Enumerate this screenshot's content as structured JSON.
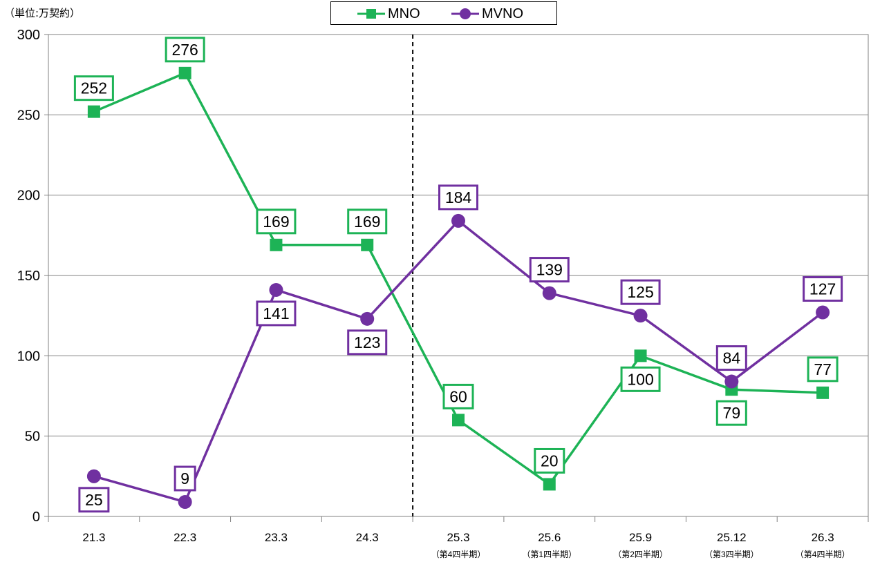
{
  "unit_label": "（単位:万契約）",
  "legend": [
    {
      "name": "MNO",
      "color": "#1db356",
      "marker": "square"
    },
    {
      "name": "MVNO",
      "color": "#7030a0",
      "marker": "circle"
    }
  ],
  "chart_data": {
    "type": "line",
    "title": "",
    "xlabel": "",
    "ylabel": "",
    "ylim": [
      0,
      300
    ],
    "yticks": [
      0,
      50,
      100,
      150,
      200,
      250,
      300
    ],
    "grid": true,
    "legend_position": "top-center",
    "categories": [
      "21.3",
      "22.3",
      "23.3",
      "24.3",
      "25.3",
      "25.6",
      "25.9",
      "25.12",
      "26.3"
    ],
    "category_sublabels": [
      "",
      "",
      "",
      "",
      "（第4四半期）",
      "（第1四半期）",
      "（第2四半期）",
      "（第3四半期）",
      "（第4四半期）"
    ],
    "divider_between": [
      "24.3",
      "25.3"
    ],
    "series": [
      {
        "name": "MNO",
        "color": "#1db356",
        "marker": "square",
        "values": [
          252,
          276,
          169,
          169,
          60,
          20,
          100,
          79,
          77
        ],
        "label_positions": [
          "above",
          "above",
          "above",
          "above",
          "above",
          "above",
          "below",
          "below",
          "above"
        ]
      },
      {
        "name": "MVNO",
        "color": "#7030a0",
        "marker": "circle",
        "values": [
          25,
          9,
          141,
          123,
          184,
          139,
          125,
          84,
          127
        ],
        "label_positions": [
          "below",
          "above",
          "below",
          "below",
          "above",
          "above",
          "above",
          "above",
          "above"
        ]
      }
    ]
  }
}
